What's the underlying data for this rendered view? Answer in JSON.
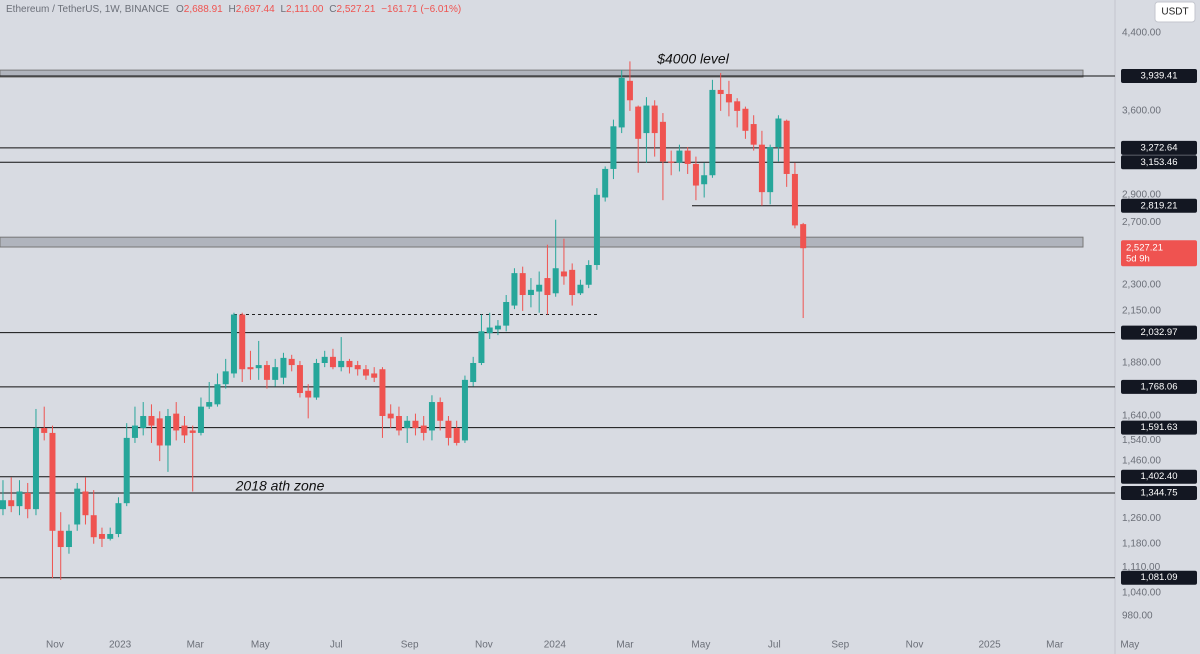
{
  "header": {
    "symbol": "Ethereum / TetherUS, 1W, BINANCE",
    "ohlc": [
      {
        "key": "O",
        "value": "2,688.91"
      },
      {
        "key": "H",
        "value": "2,697.44"
      },
      {
        "key": "L",
        "value": "2,111.00"
      },
      {
        "key": "C",
        "value": "2,527.21"
      }
    ],
    "change": "−161.71 (−6.01%)",
    "currency_button": "USDT"
  },
  "chart_data": {
    "type": "candlestick",
    "log_scale": true,
    "grid": false,
    "up_color": "#26a69a",
    "down_color": "#ef5350",
    "ylim": [
      916,
      4791
    ],
    "yticks": [
      {
        "value": 4400,
        "label": "4,400.00"
      },
      {
        "value": 3600,
        "label": "3,600.00"
      },
      {
        "value": 2900,
        "label": "2,900.00"
      },
      {
        "value": 2700,
        "label": "2,700.00"
      },
      {
        "value": 2300,
        "label": "2,300.00"
      },
      {
        "value": 2150,
        "label": "2,150.00"
      },
      {
        "value": 1880,
        "label": "1,880.00"
      },
      {
        "value": 1640,
        "label": "1,640.00"
      },
      {
        "value": 1540,
        "label": "1,540.00"
      },
      {
        "value": 1460,
        "label": "1,460.00"
      },
      {
        "value": 1260,
        "label": "1,260.00"
      },
      {
        "value": 1180,
        "label": "1,180.00"
      },
      {
        "value": 1110,
        "label": "1,110.00"
      },
      {
        "value": 1040,
        "label": "1,040.00"
      },
      {
        "value": 980,
        "label": "980.00"
      }
    ],
    "xlim": [
      -0.36,
      134.8
    ],
    "xticks": [
      {
        "value": 6.3,
        "label": "Nov"
      },
      {
        "value": 14.2,
        "label": "2023"
      },
      {
        "value": 23.3,
        "label": "Mar"
      },
      {
        "value": 31.2,
        "label": "May"
      },
      {
        "value": 40.4,
        "label": "Jul"
      },
      {
        "value": 49.3,
        "label": "Sep"
      },
      {
        "value": 58.3,
        "label": "Nov"
      },
      {
        "value": 66.9,
        "label": "2024"
      },
      {
        "value": 75.4,
        "label": "Mar"
      },
      {
        "value": 84.6,
        "label": "May"
      },
      {
        "value": 93.5,
        "label": "Jul"
      },
      {
        "value": 101.5,
        "label": "Sep"
      },
      {
        "value": 110.5,
        "label": "Nov"
      },
      {
        "value": 119.6,
        "label": "2025"
      },
      {
        "value": 127.5,
        "label": "Mar"
      },
      {
        "value": 136.6,
        "label": "May"
      }
    ],
    "open": [
      1290,
      1320,
      1300,
      1345,
      1290,
      1590,
      1570,
      1220,
      1170,
      1240,
      1350,
      1270,
      1210,
      1195,
      1210,
      1310,
      1550,
      1590,
      1640,
      1630,
      1520,
      1650,
      1600,
      1580,
      1570,
      1680,
      1690,
      1780,
      1830,
      2130,
      1860,
      1855,
      1870,
      1800,
      1810,
      1900,
      1870,
      1750,
      1720,
      1880,
      1910,
      1860,
      1890,
      1870,
      1850,
      1830,
      1850,
      1650,
      1640,
      1590,
      1620,
      1600,
      1580,
      1700,
      1620,
      1590,
      1540,
      1790,
      1880,
      2030,
      2050,
      2070,
      2180,
      2370,
      2240,
      2260,
      2340,
      2250,
      2380,
      2390,
      2250,
      2300,
      2420,
      2880,
      3100,
      3450,
      3890,
      3640,
      3400,
      3650,
      3500,
      3160,
      3150,
      3250,
      3140,
      2980,
      3050,
      3800,
      3760,
      3690,
      3620,
      3480,
      3300,
      2920,
      3280,
      3510,
      3060,
      2688.91
    ],
    "high": [
      1390,
      1400,
      1390,
      1380,
      1670,
      1680,
      1600,
      1280,
      1240,
      1380,
      1400,
      1355,
      1230,
      1230,
      1330,
      1610,
      1680,
      1700,
      1690,
      1660,
      1670,
      1700,
      1640,
      1600,
      1720,
      1790,
      1830,
      1900,
      2140,
      2140,
      1940,
      1990,
      1890,
      1900,
      1930,
      1920,
      1890,
      1780,
      1900,
      1940,
      1950,
      2010,
      1900,
      1890,
      1870,
      1860,
      1860,
      1690,
      1680,
      1640,
      1650,
      1640,
      1730,
      1720,
      1640,
      1620,
      1820,
      1910,
      2130,
      2140,
      2100,
      2240,
      2400,
      2410,
      2340,
      2380,
      2550,
      2720,
      2590,
      2430,
      2330,
      2450,
      2950,
      3120,
      3520,
      4000,
      4090,
      3650,
      3730,
      3700,
      3580,
      3250,
      3300,
      3280,
      3200,
      3150,
      3900,
      3970,
      3890,
      3720,
      3640,
      3560,
      3420,
      3300,
      3560,
      3520,
      3150,
      2697.44
    ],
    "low": [
      1270,
      1280,
      1270,
      1260,
      1270,
      1540,
      1080,
      1075,
      1150,
      1220,
      1240,
      1180,
      1170,
      1190,
      1200,
      1300,
      1530,
      1560,
      1530,
      1460,
      1420,
      1540,
      1530,
      1350,
      1560,
      1670,
      1680,
      1760,
      1810,
      1790,
      1800,
      1800,
      1760,
      1770,
      1780,
      1840,
      1720,
      1630,
      1710,
      1860,
      1850,
      1840,
      1830,
      1820,
      1800,
      1790,
      1550,
      1590,
      1560,
      1530,
      1560,
      1540,
      1540,
      1580,
      1520,
      1520,
      1530,
      1770,
      1870,
      2000,
      2020,
      2040,
      2160,
      2150,
      2170,
      2140,
      2130,
      2230,
      2300,
      2180,
      2240,
      2280,
      2390,
      2850,
      3020,
      3400,
      3600,
      3070,
      3150,
      3200,
      2860,
      3050,
      3080,
      3060,
      2860,
      2880,
      3030,
      3600,
      3550,
      3450,
      3350,
      3250,
      2820,
      2830,
      3160,
      2960,
      2660,
      2111
    ],
    "close": [
      1320,
      1300,
      1350,
      1290,
      1590,
      1570,
      1220,
      1170,
      1220,
      1360,
      1270,
      1200,
      1195,
      1210,
      1310,
      1550,
      1600,
      1640,
      1600,
      1520,
      1640,
      1580,
      1560,
      1570,
      1680,
      1700,
      1780,
      1840,
      2130,
      1850,
      1850,
      1870,
      1800,
      1860,
      1905,
      1870,
      1740,
      1720,
      1880,
      1910,
      1860,
      1890,
      1860,
      1850,
      1820,
      1810,
      1640,
      1630,
      1580,
      1620,
      1590,
      1570,
      1700,
      1620,
      1550,
      1530,
      1800,
      1880,
      2040,
      2060,
      2070,
      2200,
      2370,
      2240,
      2270,
      2300,
      2240,
      2400,
      2350,
      2240,
      2300,
      2420,
      2900,
      3100,
      3460,
      3920,
      3700,
      3350,
      3650,
      3400,
      3160,
      3150,
      3250,
      3140,
      2970,
      3050,
      3800,
      3760,
      3680,
      3600,
      3420,
      3300,
      2920,
      3280,
      3530,
      3060,
      2680,
      2527.21
    ],
    "levels": [
      {
        "value": 3939.41,
        "label": "3,939.41"
      },
      {
        "value": 3272.64,
        "label": "3,272.64"
      },
      {
        "value": 3153.46,
        "label": "3,153.46"
      },
      {
        "value": 2819.21,
        "label": "2,819.21"
      },
      {
        "value": 2032.97,
        "label": "2,032.97"
      },
      {
        "value": 1768.06,
        "label": "1,768.06"
      },
      {
        "value": 1591.63,
        "label": "1,591.63"
      },
      {
        "value": 1402.4,
        "label": "1,402.40"
      },
      {
        "value": 1344.75,
        "label": "1,344.75"
      },
      {
        "value": 1081.09,
        "label": "1,081.09"
      }
    ],
    "zones": [
      [
        3928,
        3999
      ],
      [
        2535,
        2600
      ]
    ],
    "reference_line": 2130,
    "last_price": {
      "value": 2527.21,
      "label": "2,527.21",
      "countdown": "5d 9h"
    },
    "annotations": [
      "$4000 level",
      "2018 ath zone"
    ]
  }
}
